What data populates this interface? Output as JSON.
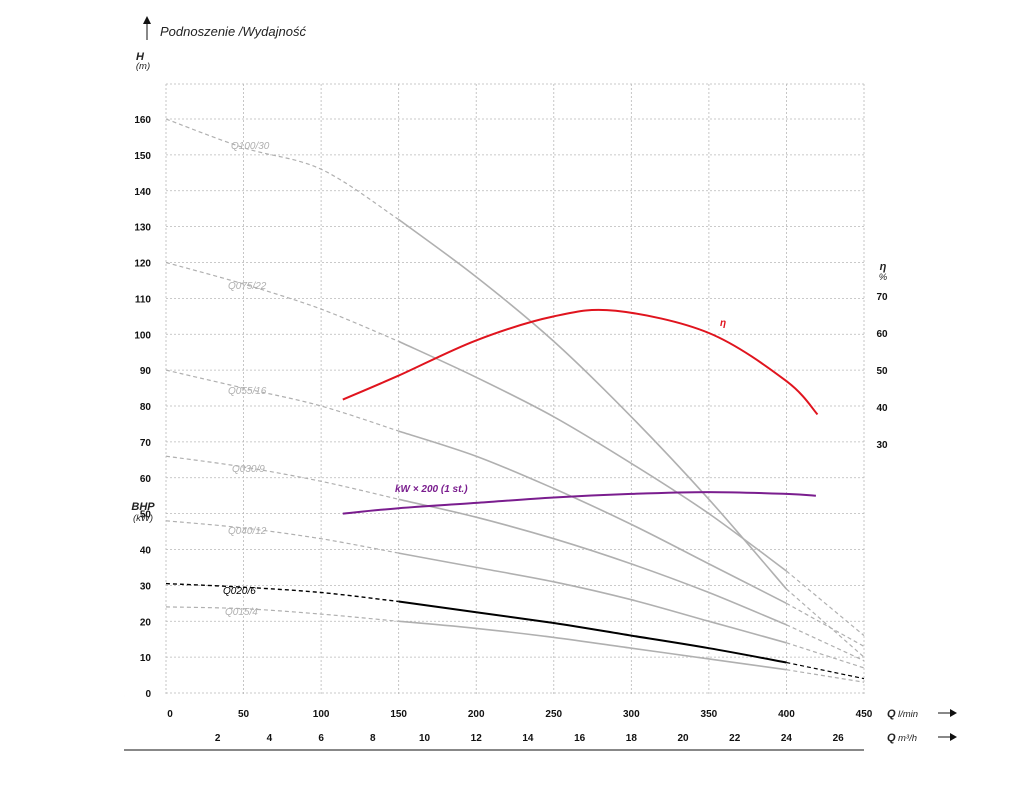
{
  "chart_data": {
    "type": "line",
    "title": "Podnoszenie /Wydajność",
    "y_left": {
      "name": "H",
      "unit": "(m)",
      "ylim": [
        0,
        160
      ],
      "ticks": [
        0,
        10,
        20,
        30,
        40,
        50,
        60,
        70,
        80,
        90,
        100,
        110,
        120,
        130,
        140,
        150,
        160
      ]
    },
    "bhp_axis": {
      "name": "BHP",
      "unit": "(kW)"
    },
    "y_right": {
      "name": "η",
      "unit": "%",
      "ticks": [
        30,
        40,
        50,
        60,
        70
      ]
    },
    "x_primary": {
      "name": "Q",
      "unit": "l/min",
      "xlim": [
        0,
        450
      ],
      "ticks": [
        0,
        50,
        100,
        150,
        200,
        250,
        300,
        350,
        400,
        450
      ]
    },
    "x_secondary": {
      "name": "Q",
      "unit": "m³/h",
      "ticks": [
        2,
        4,
        6,
        8,
        10,
        12,
        14,
        16,
        18,
        20,
        22,
        24,
        26
      ]
    },
    "series": [
      {
        "name": "Q100/30",
        "color": "#b0b0b0",
        "points": [
          [
            0,
            160
          ],
          [
            50,
            152
          ],
          [
            100,
            146
          ],
          [
            150,
            132
          ],
          [
            200,
            116
          ],
          [
            250,
            98
          ],
          [
            300,
            77
          ],
          [
            350,
            54
          ],
          [
            400,
            29
          ],
          [
            450,
            10
          ]
        ]
      },
      {
        "name": "Q075/22",
        "color": "#b0b0b0",
        "points": [
          [
            0,
            120
          ],
          [
            50,
            114
          ],
          [
            100,
            107
          ],
          [
            150,
            98
          ],
          [
            200,
            88
          ],
          [
            250,
            77
          ],
          [
            300,
            64
          ],
          [
            350,
            50
          ],
          [
            400,
            34
          ],
          [
            450,
            16
          ]
        ]
      },
      {
        "name": "Q055/16",
        "color": "#b0b0b0",
        "points": [
          [
            0,
            90
          ],
          [
            50,
            85
          ],
          [
            100,
            80
          ],
          [
            150,
            73
          ],
          [
            200,
            66
          ],
          [
            250,
            57
          ],
          [
            300,
            47
          ],
          [
            350,
            36
          ],
          [
            400,
            25
          ],
          [
            450,
            13
          ]
        ]
      },
      {
        "name": "Q030/9",
        "color": "#b0b0b0",
        "points": [
          [
            0,
            66
          ],
          [
            50,
            63
          ],
          [
            100,
            59
          ],
          [
            150,
            54
          ],
          [
            200,
            49
          ],
          [
            250,
            43
          ],
          [
            300,
            36
          ],
          [
            350,
            28
          ],
          [
            400,
            19
          ],
          [
            450,
            9
          ]
        ]
      },
      {
        "name": "Q040/12",
        "color": "#b0b0b0",
        "points": [
          [
            0,
            48
          ],
          [
            50,
            46
          ],
          [
            100,
            43
          ],
          [
            150,
            39
          ],
          [
            200,
            35
          ],
          [
            250,
            31
          ],
          [
            300,
            26
          ],
          [
            350,
            20
          ],
          [
            400,
            14
          ],
          [
            450,
            7
          ]
        ]
      },
      {
        "name": "Q020/6",
        "color": "#000000",
        "points": [
          [
            0,
            30.5
          ],
          [
            50,
            29.5
          ],
          [
            100,
            28
          ],
          [
            150,
            25.5
          ],
          [
            200,
            22.5
          ],
          [
            250,
            19.5
          ],
          [
            300,
            16
          ],
          [
            350,
            12.5
          ],
          [
            400,
            8.5
          ],
          [
            450,
            4
          ]
        ]
      },
      {
        "name": "Q015/4",
        "color": "#b0b0b0",
        "points": [
          [
            0,
            24
          ],
          [
            50,
            23.5
          ],
          [
            100,
            22
          ],
          [
            150,
            20
          ],
          [
            200,
            18
          ],
          [
            250,
            15.5
          ],
          [
            300,
            12.5
          ],
          [
            350,
            9.5
          ],
          [
            400,
            6.5
          ],
          [
            450,
            3
          ]
        ]
      },
      {
        "name": "η",
        "color": "#e0141e",
        "axis": "right",
        "points": [
          [
            114,
            42
          ],
          [
            150,
            48.5
          ],
          [
            200,
            58
          ],
          [
            250,
            64.5
          ],
          [
            290,
            66
          ],
          [
            350,
            60
          ],
          [
            400,
            47
          ],
          [
            420,
            38
          ]
        ]
      },
      {
        "name": "kW × 200 (1 st.)",
        "color": "#7a1d8e",
        "points": [
          [
            114,
            50
          ],
          [
            150,
            51.5
          ],
          [
            200,
            53
          ],
          [
            250,
            54.5
          ],
          [
            300,
            55.5
          ],
          [
            350,
            56
          ],
          [
            400,
            55.5
          ],
          [
            419,
            55
          ]
        ]
      }
    ]
  }
}
